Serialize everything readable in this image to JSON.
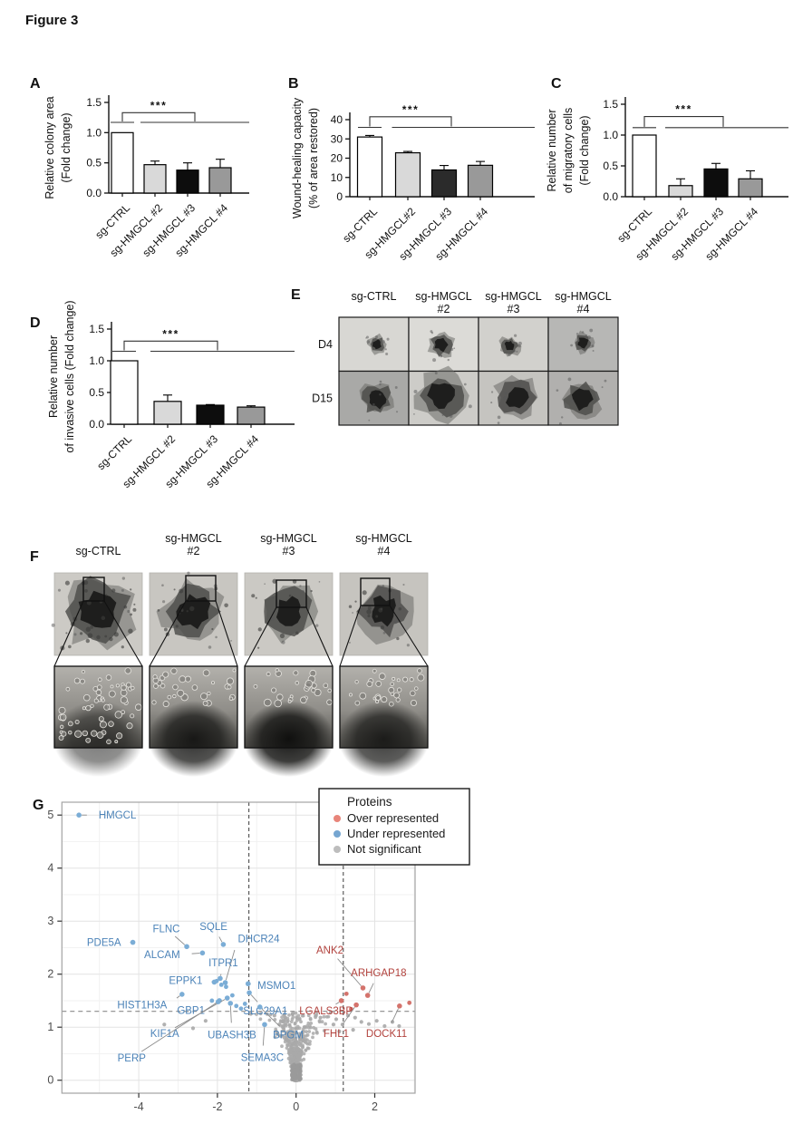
{
  "figure": {
    "title": "Figure 3"
  },
  "panel_letters": {
    "A": "A",
    "B": "B",
    "C": "C",
    "D": "D",
    "E": "E",
    "F": "F",
    "G": "G"
  },
  "chart_data": [
    {
      "panel": "A",
      "type": "bar",
      "ylabel_lines": [
        "Relative colony area",
        "(Fold change)"
      ],
      "categories": [
        "sg-CTRL",
        "sg-HMGCL #2",
        "sg-HMGCL #3",
        "sg-HMGCL #4"
      ],
      "values": [
        1.0,
        0.47,
        0.38,
        0.42
      ],
      "errors": [
        0,
        0.06,
        0.12,
        0.14
      ],
      "bar_colors": [
        "#ffffff",
        "#d9d9d9",
        "#0d0d0d",
        "#999999"
      ],
      "ylim": [
        0,
        1.5
      ],
      "ytick_labels": [
        "0.0",
        "0.5",
        "1.0",
        "1.5"
      ],
      "significance": {
        "stars": "***",
        "ctrl_line_y": 1.17,
        "bracket_y": 1.33
      }
    },
    {
      "panel": "B",
      "type": "bar",
      "ylabel_lines": [
        "Wound-healing capacity",
        "(% of area restored)"
      ],
      "categories": [
        "sg-CTRL",
        "sg-HMGCL#2",
        "sg-HMGCL #3",
        "sg-HMGCL #4"
      ],
      "values": [
        31,
        22.8,
        13.9,
        16.3
      ],
      "errors": [
        0.8,
        0.7,
        2.3,
        2.0
      ],
      "bar_colors": [
        "#ffffff",
        "#d9d9d9",
        "#2b2b2b",
        "#999999"
      ],
      "ylim": [
        0,
        40
      ],
      "ytick_labels": [
        "0",
        "10",
        "20",
        "30",
        "40"
      ],
      "significance": {
        "stars": "***",
        "ctrl_line_y": 36,
        "bracket_y": 41.5
      }
    },
    {
      "panel": "C",
      "type": "bar",
      "ylabel_lines": [
        "Relative number",
        "of migratory cells",
        "(Fold change)"
      ],
      "categories": [
        "sg-CTRL",
        "sg-HMGCL #2",
        "sg-HMGCL #3",
        "sg-HMGCL #4"
      ],
      "values": [
        1.0,
        0.18,
        0.45,
        0.29
      ],
      "errors": [
        0,
        0.11,
        0.09,
        0.13
      ],
      "bar_colors": [
        "#ffffff",
        "#d9d9d9",
        "#0d0d0d",
        "#999999"
      ],
      "ylim": [
        0,
        1.5
      ],
      "ytick_labels": [
        "0.0",
        "0.5",
        "1.0",
        "1.5"
      ],
      "significance": {
        "stars": "***",
        "ctrl_line_y": 1.12,
        "bracket_y": 1.3
      }
    },
    {
      "panel": "D",
      "type": "bar",
      "ylabel_lines": [
        "Relative number",
        "of invasive cells (Fold change)"
      ],
      "categories": [
        "sg-CTRL",
        "sg-HMGCL #2",
        "sg-HMGCL #3",
        "sg-HMGCL #4"
      ],
      "values": [
        1.0,
        0.36,
        0.3,
        0.27
      ],
      "errors": [
        0,
        0.1,
        0.01,
        0.02
      ],
      "bar_colors": [
        "#ffffff",
        "#d9d9d9",
        "#0d0d0d",
        "#999999"
      ],
      "ylim": [
        0,
        1.5
      ],
      "ytick_labels": [
        "0.0",
        "0.5",
        "1.0",
        "1.5"
      ],
      "significance": {
        "stars": "***",
        "ctrl_line_y": 1.15,
        "bracket_y": 1.31
      }
    },
    {
      "panel": "G",
      "type": "scatter",
      "subtype": "volcano",
      "xticks": [
        -4,
        -2,
        0,
        2
      ],
      "yticks": [
        0,
        1,
        2,
        3,
        4,
        5
      ],
      "xlim": [
        -5.95,
        3.02
      ],
      "ylim": [
        -0.26,
        5.24
      ],
      "thresholds": {
        "x": [
          -1.2,
          1.2
        ],
        "y": 1.3
      },
      "legend": {
        "title": "Proteins",
        "items": [
          {
            "label": "Over represented",
            "color": "#e8857a"
          },
          {
            "label": "Under represented",
            "color": "#76a6d1"
          },
          {
            "label": "Not significant",
            "color": "#bdbdbd"
          }
        ]
      },
      "colors": {
        "over_dot": "#d4736c",
        "under_dot": "#7badd6",
        "ns_dot": "#a9a9a9",
        "over_text": "#b2423d",
        "under_text": "#4c83b8"
      },
      "labeled_points": [
        {
          "gene": "HMGCL",
          "group": "under",
          "x": -5.52,
          "y": 5.0,
          "lx": -5.02,
          "ly": 5.0,
          "anchor": "start"
        },
        {
          "gene": "PDE5A",
          "group": "under",
          "x": -4.15,
          "y": 2.6,
          "lx": -4.45,
          "ly": 2.6,
          "anchor": "end"
        },
        {
          "gene": "FLNC",
          "group": "under",
          "x": -2.78,
          "y": 2.52,
          "lx": -3.3,
          "ly": 2.86,
          "anchor": "middle"
        },
        {
          "gene": "ALCAM",
          "group": "under",
          "x": -2.38,
          "y": 2.4,
          "lx": -2.95,
          "ly": 2.37,
          "anchor": "end"
        },
        {
          "gene": "SQLE",
          "group": "under",
          "x": -1.85,
          "y": 2.56,
          "lx": -2.1,
          "ly": 2.9,
          "anchor": "middle"
        },
        {
          "gene": "DHCR24",
          "group": "under",
          "x": -1.8,
          "y": 1.84,
          "lx": -1.48,
          "ly": 2.67,
          "anchor": "start"
        },
        {
          "gene": "ITPR1",
          "group": "under",
          "x": -1.93,
          "y": 1.92,
          "lx": -1.85,
          "ly": 2.22,
          "anchor": "middle"
        },
        {
          "gene": "EPPK1",
          "group": "under",
          "x": -2.08,
          "y": 1.85,
          "lx": -2.38,
          "ly": 1.88,
          "anchor": "end"
        },
        {
          "gene": "MSMO1",
          "group": "under",
          "x": -1.22,
          "y": 1.82,
          "lx": -0.98,
          "ly": 1.79,
          "anchor": "start"
        },
        {
          "gene": "HIST1H3A",
          "group": "under",
          "x": -2.9,
          "y": 1.62,
          "lx": -3.28,
          "ly": 1.42,
          "anchor": "end"
        },
        {
          "gene": "GBP1",
          "group": "under",
          "x": -1.95,
          "y": 1.5,
          "lx": -2.32,
          "ly": 1.32,
          "anchor": "end"
        },
        {
          "gene": "SLC29A1",
          "group": "under",
          "x": -1.19,
          "y": 1.65,
          "lx": -0.78,
          "ly": 1.31,
          "anchor": "middle"
        },
        {
          "gene": "KIF1A",
          "group": "under",
          "x": -1.75,
          "y": 1.55,
          "lx": -3.34,
          "ly": 0.88,
          "anchor": "middle"
        },
        {
          "gene": "UBASH3B",
          "group": "under",
          "x": -1.67,
          "y": 1.45,
          "lx": -1.63,
          "ly": 0.86,
          "anchor": "middle"
        },
        {
          "gene": "BPGM",
          "group": "under",
          "x": -0.92,
          "y": 1.38,
          "lx": -0.2,
          "ly": 0.86,
          "anchor": "middle"
        },
        {
          "gene": "SEMA3C",
          "group": "under",
          "x": -0.8,
          "y": 1.05,
          "lx": -0.86,
          "ly": 0.43,
          "anchor": "middle"
        },
        {
          "gene": "PERP",
          "group": "under",
          "x": -1.98,
          "y": 1.48,
          "lx": -4.18,
          "ly": 0.42,
          "anchor": "middle"
        },
        {
          "gene": "ANK2",
          "group": "over",
          "x": 1.7,
          "y": 1.74,
          "lx": 0.86,
          "ly": 2.46,
          "anchor": "middle"
        },
        {
          "gene": "ARHGAP18",
          "group": "over",
          "x": 1.82,
          "y": 1.6,
          "lx": 2.1,
          "ly": 2.03,
          "anchor": "middle"
        },
        {
          "gene": "LGALS3BP",
          "group": "over",
          "x": 1.15,
          "y": 1.5,
          "lx": 0.76,
          "ly": 1.31,
          "anchor": "middle"
        },
        {
          "gene": "FHL1",
          "group": "over",
          "x": 1.53,
          "y": 1.42,
          "lx": 1.02,
          "ly": 0.88,
          "anchor": "middle"
        },
        {
          "gene": "DOCK11",
          "group": "over",
          "x": 2.63,
          "y": 1.4,
          "lx": 2.3,
          "ly": 0.88,
          "anchor": "middle"
        }
      ],
      "extra_points": {
        "under": [
          [
            -2.02,
            1.87
          ],
          [
            -1.9,
            1.8
          ],
          [
            -1.78,
            1.76
          ],
          [
            -1.62,
            1.6
          ],
          [
            -1.52,
            1.4
          ],
          [
            -2.14,
            1.5
          ],
          [
            -1.4,
            1.35
          ],
          [
            -1.3,
            1.44
          ]
        ],
        "over": [
          [
            1.28,
            1.63
          ],
          [
            1.4,
            1.34
          ],
          [
            2.88,
            1.46
          ]
        ],
        "ns": [
          [
            -3.35,
            1.05
          ],
          [
            -2.62,
            0.98
          ],
          [
            -2.3,
            1.12
          ],
          [
            -1.15,
            1.25
          ],
          [
            -0.55,
            1.22
          ],
          [
            0.62,
            1.18
          ],
          [
            0.88,
            1.28
          ],
          [
            1.02,
            1.15
          ],
          [
            1.18,
            1.05
          ],
          [
            1.32,
            1.22
          ],
          [
            1.5,
            1.18
          ],
          [
            1.66,
            1.1
          ],
          [
            1.85,
            1.06
          ],
          [
            2.05,
            1.12
          ],
          [
            2.25,
            1.02
          ],
          [
            2.45,
            1.1
          ],
          [
            2.62,
            1.02
          ],
          [
            1.45,
            0.95
          ],
          [
            1.1,
            0.92
          ],
          [
            0.95,
            1.05
          ]
        ]
      },
      "background": {
        "count": 950,
        "seed": 12
      }
    }
  ],
  "panel_e": {
    "col_headers": [
      [
        "sg-CTRL"
      ],
      [
        "sg-HMGCL",
        "#2"
      ],
      [
        "sg-HMGCL",
        "#3"
      ],
      [
        "sg-HMGCL",
        "#4"
      ]
    ],
    "row_labels": [
      "D4",
      "D15"
    ],
    "cells": [
      [
        {
          "bg": "#d8d7d3",
          "blob": 10
        },
        {
          "bg": "#dcdbd7",
          "blob": 14
        },
        {
          "bg": "#d2d1cd",
          "blob": 11
        },
        {
          "bg": "#b7b7b5",
          "blob": 11
        }
      ],
      [
        {
          "bg": "#a9a9a7",
          "blob": 19
        },
        {
          "bg": "#cdccc8",
          "blob": 27
        },
        {
          "bg": "#c5c4c0",
          "blob": 23
        },
        {
          "bg": "#b1b0ae",
          "blob": 21
        }
      ]
    ]
  },
  "panel_f": {
    "col_headers": [
      [
        "sg-CTRL"
      ],
      [
        "sg-HMGCL",
        "#2"
      ],
      [
        "sg-HMGCL",
        "#3"
      ],
      [
        "sg-HMGCL",
        "#4"
      ]
    ],
    "columns": [
      {
        "bg": "#cccac5",
        "blob": 40,
        "satellites": 30
      },
      {
        "bg": "#c8c6c1",
        "blob": 33,
        "satellites": 14
      },
      {
        "bg": "#cbc9c4",
        "blob": 31,
        "satellites": 10
      },
      {
        "bg": "#c6c4bf",
        "blob": 30,
        "satellites": 12
      }
    ]
  }
}
